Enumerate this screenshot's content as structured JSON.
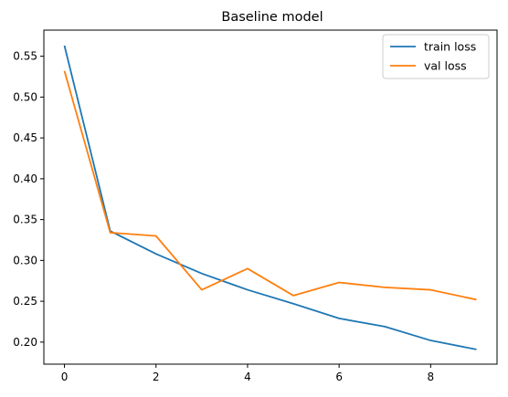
{
  "chart_data": {
    "type": "line",
    "title": "Baseline model",
    "xlabel": "",
    "ylabel": "",
    "x": [
      0,
      1,
      2,
      3,
      4,
      5,
      6,
      7,
      8,
      9
    ],
    "series": [
      {
        "name": "train loss",
        "color": "#1f77b4",
        "values": [
          0.563,
          0.336,
          0.308,
          0.284,
          0.264,
          0.247,
          0.229,
          0.219,
          0.202,
          0.191
        ]
      },
      {
        "name": "val loss",
        "color": "#ff7f0e",
        "values": [
          0.532,
          0.334,
          0.33,
          0.264,
          0.29,
          0.257,
          0.273,
          0.267,
          0.264,
          0.252
        ]
      }
    ],
    "xlim": [
      -0.45,
      9.45
    ],
    "ylim": [
      0.173,
      0.582
    ],
    "xticks": [
      0,
      2,
      4,
      6,
      8
    ],
    "yticks": [
      0.2,
      0.25,
      0.3,
      0.35,
      0.4,
      0.45,
      0.5,
      0.55
    ],
    "ytick_labels": [
      "0.20",
      "0.25",
      "0.30",
      "0.35",
      "0.40",
      "0.45",
      "0.50",
      "0.55"
    ],
    "grid": false,
    "legend_position": "top-right"
  }
}
